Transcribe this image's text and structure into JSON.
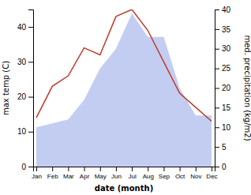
{
  "chart_data": {
    "type": "line",
    "xlabel": "date (month)",
    "ylabel": "max temp (C)",
    "y2label": "med. precipitation (kg/m2)",
    "categories": [
      "Jan",
      "Feb",
      "Mar",
      "Apr",
      "May",
      "Jun",
      "Jul",
      "Aug",
      "Sep",
      "Oct",
      "Nov",
      "Dec"
    ],
    "series": [
      {
        "type": "area",
        "axis": "y2",
        "color": "#b8c4f0",
        "values": [
          10,
          11,
          12,
          17,
          25,
          30,
          39,
          33,
          33,
          20,
          13,
          13
        ]
      },
      {
        "type": "line",
        "color": "#c0392b",
        "values": [
          14,
          23,
          26,
          34,
          32,
          43,
          45,
          39,
          30,
          21,
          17,
          13
        ]
      }
    ],
    "ylim": [
      0,
      45
    ],
    "yticks": [
      0,
      10,
      20,
      30,
      40
    ],
    "y2lim": [
      0,
      40
    ],
    "y2ticks": [
      0,
      5,
      10,
      15,
      20,
      25,
      30,
      35,
      40
    ],
    "grid": false
  }
}
